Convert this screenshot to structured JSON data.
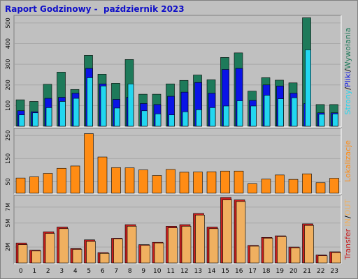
{
  "title": "Raport Godzinowy -  październik 2023",
  "colors": {
    "strony": "#1e7a5a",
    "pliki": "#0a14e6",
    "wywolania": "#22d6f0",
    "lokalizacje": "#ff8c14",
    "transfer_out": "#c81e1e",
    "transfer_in": "#f0b060",
    "panel_bg": "#c0c0c0",
    "grid": "#a8a8a8"
  },
  "chart_data": [
    {
      "type": "bar",
      "name": "requests",
      "categories": [
        "0",
        "1",
        "2",
        "3",
        "4",
        "5",
        "6",
        "7",
        "8",
        "9",
        "10",
        "11",
        "12",
        "13",
        "14",
        "15",
        "16",
        "17",
        "18",
        "19",
        "20",
        "21",
        "22",
        "23"
      ],
      "ylim": [
        0,
        530
      ],
      "yticks": [
        "100",
        "200",
        "300",
        "400",
        "500"
      ],
      "ytick_values": [
        100,
        200,
        300,
        400,
        500
      ],
      "series_labels": [
        "Strony",
        "Pliki",
        "Wywołania"
      ],
      "series": [
        {
          "values": [
            128,
            120,
            203,
            262,
            178,
            343,
            252,
            208,
            323,
            155,
            155,
            205,
            222,
            248,
            225,
            333,
            355,
            170,
            235,
            223,
            210,
            525,
            105,
            105
          ]
        },
        {
          "values": [
            75,
            70,
            135,
            140,
            160,
            280,
            205,
            130,
            140,
            110,
            105,
            145,
            165,
            212,
            160,
            275,
            280,
            125,
            200,
            195,
            160,
            110,
            65,
            65
          ]
        },
        {
          "values": [
            55,
            65,
            90,
            120,
            135,
            235,
            195,
            88,
            205,
            75,
            60,
            55,
            70,
            80,
            90,
            98,
            123,
            98,
            150,
            133,
            138,
            370,
            58,
            60
          ]
        }
      ]
    },
    {
      "type": "bar",
      "name": "lokalizacje",
      "categories": [
        "0",
        "1",
        "2",
        "3",
        "4",
        "5",
        "6",
        "7",
        "8",
        "9",
        "10",
        "11",
        "12",
        "13",
        "14",
        "15",
        "16",
        "17",
        "18",
        "19",
        "20",
        "21",
        "22",
        "23"
      ],
      "ylim": [
        0,
        275
      ],
      "yticks": [
        "50",
        "150",
        "250"
      ],
      "ytick_values": [
        50,
        150,
        250
      ],
      "series_labels": [
        "Lokalizacje"
      ],
      "series": [
        {
          "values": [
            66,
            71,
            86,
            108,
            118,
            258,
            157,
            111,
            110,
            101,
            77,
            103,
            91,
            92,
            93,
            96,
            96,
            41,
            61,
            79,
            60,
            84,
            46,
            65
          ]
        }
      ]
    },
    {
      "type": "bar",
      "name": "transfer",
      "categories": [
        "0",
        "1",
        "2",
        "3",
        "4",
        "5",
        "6",
        "7",
        "8",
        "9",
        "10",
        "11",
        "12",
        "13",
        "14",
        "15",
        "16",
        "17",
        "18",
        "19",
        "20",
        "21",
        "22",
        "23"
      ],
      "ylim": [
        0,
        8.3
      ],
      "yticks": [
        "2M",
        "5M",
        "7M"
      ],
      "ytick_values": [
        2,
        5,
        7
      ],
      "series_labels": [
        "Transfer",
        "IN",
        "OUT"
      ],
      "series": [
        {
          "values": [
            2.5,
            1.6,
            3.9,
            4.5,
            1.8,
            2.9,
            1.3,
            3.1,
            4.8,
            2.3,
            2.6,
            4.6,
            4.8,
            6.2,
            4.5,
            8.2,
            7.9,
            2.2,
            3.2,
            3.4,
            2.0,
            4.9,
            1.0,
            1.4
          ]
        },
        {
          "values": [
            2.3,
            1.5,
            3.7,
            4.3,
            1.7,
            2.7,
            1.2,
            3.0,
            4.6,
            2.2,
            2.5,
            4.4,
            4.6,
            6.0,
            4.3,
            7.9,
            7.7,
            2.1,
            3.1,
            3.3,
            1.9,
            4.7,
            0.9,
            1.3
          ]
        }
      ]
    }
  ]
}
